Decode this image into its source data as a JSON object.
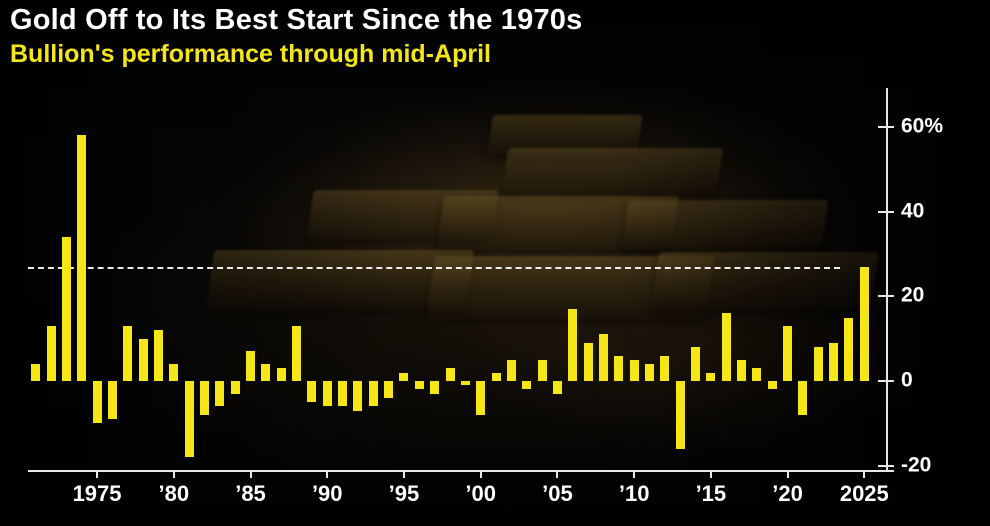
{
  "header": {
    "title": "Gold Off to Its Best Start Since the 1970s",
    "subtitle": "Bullion's performance through mid-April"
  },
  "colors": {
    "bar": "#f5e617",
    "title": "#ffffff",
    "subtitle": "#f5e617",
    "axis": "#e8e8e8",
    "background": "#050505",
    "reference_line": "#ffffff"
  },
  "chart_data": {
    "type": "bar",
    "title": "Gold Off to Its Best Start Since the 1970s",
    "subtitle": "Bullion's performance through mid-April",
    "unit": "%",
    "x": [
      1971,
      1972,
      1973,
      1974,
      1975,
      1976,
      1977,
      1978,
      1979,
      1980,
      1981,
      1982,
      1983,
      1984,
      1985,
      1986,
      1987,
      1988,
      1989,
      1990,
      1991,
      1992,
      1993,
      1994,
      1995,
      1996,
      1997,
      1998,
      1999,
      2000,
      2001,
      2002,
      2003,
      2004,
      2005,
      2006,
      2007,
      2008,
      2009,
      2010,
      2011,
      2012,
      2013,
      2014,
      2015,
      2016,
      2017,
      2018,
      2019,
      2020,
      2021,
      2022,
      2023,
      2024,
      2025
    ],
    "values": [
      4,
      13,
      34,
      58,
      -10,
      -9,
      13,
      10,
      12,
      4,
      -18,
      -8,
      -6,
      -3,
      7,
      4,
      3,
      13,
      -5,
      -6,
      -6,
      -7,
      -6,
      -4,
      2,
      -2,
      -3,
      3,
      -1,
      -8,
      2,
      5,
      -2,
      5,
      -3,
      17,
      9,
      11,
      6,
      5,
      4,
      6,
      -16,
      8,
      2,
      16,
      5,
      3,
      -2,
      13,
      -8,
      8,
      9,
      15,
      27
    ],
    "ylim": [
      -22,
      68
    ],
    "grid": false,
    "legend": "none",
    "yticks": [
      {
        "value": 60,
        "label": "60%"
      },
      {
        "value": 40,
        "label": "40"
      },
      {
        "value": 20,
        "label": "20"
      },
      {
        "value": 0,
        "label": "0"
      },
      {
        "value": -20,
        "label": "-20"
      }
    ],
    "xticks": [
      {
        "year": 1975,
        "label": "1975"
      },
      {
        "year": 1980,
        "label": "’80"
      },
      {
        "year": 1985,
        "label": "’85"
      },
      {
        "year": 1990,
        "label": "’90"
      },
      {
        "year": 1995,
        "label": "’95"
      },
      {
        "year": 2000,
        "label": "’00"
      },
      {
        "year": 2005,
        "label": "’05"
      },
      {
        "year": 2010,
        "label": "’10"
      },
      {
        "year": 2015,
        "label": "’15"
      },
      {
        "year": 2020,
        "label": "’20"
      },
      {
        "year": 2025,
        "label": "2025"
      }
    ],
    "reference_line": {
      "value": 27,
      "style": "dashed"
    }
  }
}
